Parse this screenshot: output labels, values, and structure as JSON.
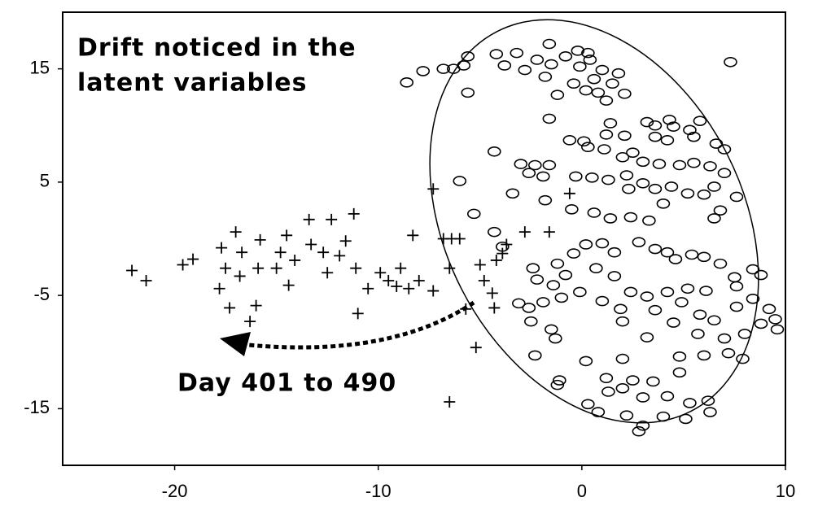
{
  "chart_data": {
    "type": "scatter",
    "annotations": [
      "Drift noticed in the",
      "latent variables",
      "Day 401 to 490"
    ],
    "xlim": [
      -25.5,
      10
    ],
    "ylim": [
      -20,
      20
    ],
    "xticks": [
      -20,
      -10,
      0,
      10
    ],
    "yticks": [
      15,
      5,
      -5,
      -15
    ],
    "series": [
      {
        "marker": "plus",
        "color": "#000000",
        "x": [
          -22.1,
          -21.4,
          -19.6,
          -19.1,
          -17.7,
          -17,
          -16.7,
          -17.5,
          -17.8,
          -17.3,
          -16.8,
          -16,
          -16.3,
          -15.8,
          -15.9,
          -15,
          -14.8,
          -14.5,
          -14.4,
          -14.1,
          -13.4,
          -13.3,
          -12.7,
          -12.5,
          -12.3,
          -11.9,
          -11.6,
          -11.2,
          -11.1,
          -11,
          -10.5,
          -9.9,
          -9.5,
          -9.1,
          -8.9,
          -8.5,
          -8.3,
          -8,
          -7.3,
          -6.8,
          -6.5,
          -6.4,
          -6,
          -6.5,
          -5.2,
          -5,
          -4.8,
          -4.4,
          -4.2,
          -3.9,
          -3.7,
          -5.7,
          -2.8,
          -1.6,
          -0.6,
          -7.3,
          -4.3
        ],
        "y": [
          -2.8,
          -3.7,
          -2.3,
          -1.8,
          -0.8,
          0.6,
          -1.2,
          -2.6,
          -4.4,
          -6.1,
          -3.3,
          -5.9,
          -7.3,
          -0.1,
          -2.6,
          -2.6,
          -1.2,
          0.3,
          -4.1,
          -1.9,
          1.7,
          -0.5,
          -1.2,
          -3,
          1.7,
          -1.5,
          -0.2,
          2.2,
          -2.6,
          -6.6,
          -4.4,
          -3,
          -3.7,
          -4.2,
          -2.6,
          -4.4,
          0.3,
          -3.7,
          -4.6,
          0,
          -2.6,
          0,
          0,
          -14.4,
          -9.6,
          -2.3,
          -3.7,
          -4.8,
          -1.9,
          -1.3,
          -0.5,
          -6.2,
          0.6,
          0.6,
          4,
          4.4,
          -6.1
        ]
      },
      {
        "marker": "circle",
        "color": "#000000",
        "x": [
          -8.6,
          -7.8,
          -6.8,
          -6.3,
          -5.8,
          -5.6,
          -5.6,
          -4.2,
          -3.2,
          -3.8,
          -2.2,
          -1.6,
          -1.5,
          -0.8,
          -0.2,
          0.3,
          -2.8,
          -1.8,
          -1.2,
          -0.4,
          0.2,
          0.6,
          1,
          0.8,
          1.5,
          1.2,
          -0.1,
          0.4,
          1.8,
          7.3,
          2.1,
          -1.6,
          1.4,
          -0.6,
          0.1,
          0.3,
          1.2,
          2.1,
          3.2,
          3.6,
          4.3,
          4.5,
          5.3,
          5.8,
          3.6,
          4.2,
          5.5,
          6.6,
          7,
          -4.3,
          -3,
          -2.3,
          -1.6,
          -1.9,
          -2.6,
          -6,
          -0.3,
          0.5,
          1.3,
          2.2,
          1.1,
          2,
          2.5,
          3,
          3.8,
          4.8,
          5.5,
          6.3,
          7,
          2.3,
          3,
          3.6,
          4.4,
          5.2,
          6,
          6.5,
          7.6,
          -3.4,
          -1.8,
          -0.5,
          0.6,
          1.4,
          2.4,
          3.3,
          4,
          6.5,
          6.8,
          -5.3,
          -4.3,
          -3.9,
          -2.4,
          -2.2,
          -1.2,
          -0.4,
          0.2,
          1,
          1.6,
          2.8,
          3.6,
          4.2,
          4.6,
          5.4,
          6,
          6.8,
          8.4,
          7.5,
          0.7,
          1.6,
          2.4,
          3.2,
          4.2,
          5.2,
          6.1,
          7.6,
          8.8,
          -1.4,
          -0.8,
          -3.1,
          -2.6,
          -1.9,
          -1,
          -0.1,
          1,
          1.9,
          3.6,
          4.9,
          5.8,
          6.5,
          7.6,
          8.4,
          9.2,
          9.5,
          8.8,
          -2.5,
          -1.5,
          -1.3,
          2,
          3.2,
          4.5,
          5.7,
          7,
          8,
          9.6,
          -2.3,
          0.2,
          2,
          4.8,
          6,
          7.2,
          7.9,
          1.2,
          2.5,
          3.5,
          4.8,
          -1.2,
          1.3,
          2,
          3,
          4.2,
          5.3,
          6.2,
          0.3,
          0.8,
          2.2,
          3,
          4,
          5.1,
          6.3,
          2.8,
          -1.1
        ],
        "y": [
          13.8,
          14.8,
          15,
          15,
          15.3,
          16.1,
          12.9,
          16.3,
          16.4,
          15.3,
          15.8,
          17.2,
          15.4,
          16.1,
          16.6,
          16.4,
          14.9,
          14.3,
          12.7,
          13.7,
          13.1,
          14.1,
          14.9,
          12.9,
          13.7,
          12.2,
          15.2,
          15.8,
          14.6,
          15.6,
          12.8,
          10.6,
          10.2,
          8.7,
          8.6,
          8.1,
          9.2,
          9.1,
          10.3,
          10,
          10.5,
          9.9,
          9.6,
          10.4,
          9,
          8.7,
          9,
          8.4,
          7.9,
          7.7,
          6.6,
          6.5,
          6.5,
          5.5,
          5.8,
          5.1,
          5.5,
          5.4,
          5.2,
          5.6,
          7.9,
          7.2,
          7.6,
          6.8,
          6.6,
          6.5,
          6.7,
          6.4,
          5.8,
          4.4,
          4.9,
          4.4,
          4.6,
          4,
          3.9,
          4.6,
          3.7,
          4,
          3.4,
          2.6,
          2.3,
          1.8,
          1.9,
          1.6,
          3.1,
          1.8,
          2.5,
          2.2,
          0.6,
          -0.7,
          -2.6,
          -3.6,
          -2.2,
          -1.3,
          -0.5,
          -0.4,
          -1.2,
          -0.3,
          -0.9,
          -1.2,
          -1.8,
          -1.4,
          -1.6,
          -2.2,
          -2.7,
          -3.4,
          -2.6,
          -3.3,
          -4.7,
          -5.1,
          -4.7,
          -4.4,
          -4.6,
          -4.2,
          -3.2,
          -4.1,
          -3.2,
          -5.7,
          -6.1,
          -5.6,
          -5.2,
          -4.7,
          -5.5,
          -6.2,
          -6.3,
          -5.6,
          -6.7,
          -7.2,
          -6,
          -5.3,
          -6.2,
          -7.1,
          -7.5,
          -7.3,
          -8,
          -8.8,
          -7.3,
          -8.7,
          -7.4,
          -8.4,
          -8.8,
          -8.4,
          -8,
          -10.3,
          -10.8,
          -10.6,
          -10.4,
          -10.3,
          -10.1,
          -10.6,
          -12.3,
          -12.5,
          -12.6,
          -11.8,
          -12.9,
          -13.5,
          -13.2,
          -14,
          -13.9,
          -14.5,
          -14.3,
          -14.6,
          -15.3,
          -15.6,
          -16.5,
          -15.7,
          -15.9,
          -15.3,
          -17,
          -12.5
        ]
      }
    ]
  }
}
